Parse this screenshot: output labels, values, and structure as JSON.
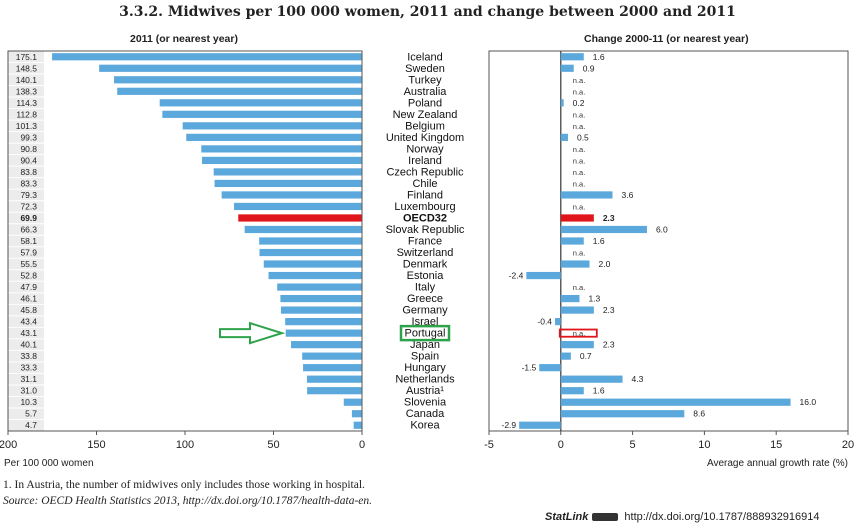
{
  "title": "3.3.2. Midwives per 100 000 women, 2011 and change between 2000 and 2011",
  "footnote": "1. In Austria, the number of midwives only includes those working in hospital.",
  "source": "Source: OECD Health Statistics 2013, http://dx.doi.org/10.1787/health-data-en.",
  "statlink": {
    "label": "StatLink",
    "url": "http://dx.doi.org/10.1787/888932916914"
  },
  "highlight": {
    "country": "Portugal",
    "arrow": "green-arrow"
  },
  "colors": {
    "bar": "#5ba8dc",
    "oecd": "#e0151b",
    "highlight": "#2ea24a",
    "frame": "#555555",
    "band": "#ececec"
  },
  "chart_data": [
    {
      "type": "bar",
      "orientation": "horizontal-reversed",
      "title": "2011 (or nearest year)",
      "xlabel": "Per 100 000 women",
      "xlim": [
        0,
        200
      ],
      "ticks": [
        200,
        150,
        100,
        50,
        0
      ],
      "categories": [
        "Iceland",
        "Sweden",
        "Turkey",
        "Australia",
        "Poland",
        "New Zealand",
        "Belgium",
        "United Kingdom",
        "Norway",
        "Ireland",
        "Czech Republic",
        "Chile",
        "Finland",
        "Luxembourg",
        "OECD32",
        "Slovak Republic",
        "France",
        "Switzerland",
        "Denmark",
        "Estonia",
        "Italy",
        "Greece",
        "Germany",
        "Israel",
        "Portugal",
        "Japan",
        "Spain",
        "Hungary",
        "Netherlands",
        "Austria¹",
        "Slovenia",
        "Canada",
        "Korea"
      ],
      "value_labels": [
        "175.1",
        "148.5",
        "140.1",
        "138.3",
        "114.3",
        "112.8",
        "101.3",
        "99.3",
        "90.8",
        "90.4",
        "83.8",
        "83.3",
        "79.3",
        "72.3",
        "69.9",
        "66.3",
        "58.1",
        "57.9",
        "55.5",
        "52.8",
        "47.9",
        "46.1",
        "45.8",
        "43.4",
        "43.1",
        "40.1",
        "33.8",
        "33.3",
        "31.1",
        "31.0",
        "10.3",
        "5.7",
        "4.7"
      ],
      "values": [
        175.1,
        148.5,
        140.1,
        138.3,
        114.3,
        112.8,
        101.3,
        99.3,
        90.8,
        90.4,
        83.8,
        83.3,
        79.3,
        72.3,
        69.9,
        66.3,
        58.1,
        57.9,
        55.5,
        52.8,
        47.9,
        46.1,
        45.8,
        43.4,
        43.1,
        40.1,
        33.8,
        33.3,
        31.1,
        31.0,
        10.3,
        5.7,
        4.7
      ]
    },
    {
      "type": "bar",
      "orientation": "horizontal",
      "title": "Change 2000-11 (or nearest year)",
      "xlabel": "Average annual growth rate (%)",
      "xlim": [
        -5,
        20
      ],
      "ticks": [
        -5,
        0,
        5,
        10,
        15,
        20
      ],
      "categories": [
        "Iceland",
        "Sweden",
        "Turkey",
        "Australia",
        "Poland",
        "New Zealand",
        "Belgium",
        "United Kingdom",
        "Norway",
        "Ireland",
        "Czech Republic",
        "Chile",
        "Finland",
        "Luxembourg",
        "OECD32",
        "Slovak Republic",
        "France",
        "Switzerland",
        "Denmark",
        "Estonia",
        "Italy",
        "Greece",
        "Germany",
        "Israel",
        "Portugal",
        "Japan",
        "Spain",
        "Hungary",
        "Netherlands",
        "Austria¹",
        "Slovenia",
        "Canada",
        "Korea"
      ],
      "value_labels": [
        "1.6",
        "0.9",
        "n.a.",
        "n.a.",
        "0.2",
        "n.a.",
        "n.a.",
        "0.5",
        "n.a.",
        "n.a.",
        "n.a.",
        "n.a.",
        "3.6",
        "n.a.",
        "2.3",
        "6.0",
        "1.6",
        "n.a.",
        "2.0",
        "-2.4",
        "n.a.",
        "1.3",
        "2.3",
        "-0.4",
        "n.a.",
        "2.3",
        "0.7",
        "-1.5",
        "4.3",
        "1.6",
        "16.0",
        "8.6",
        "-2.9"
      ],
      "values": [
        1.6,
        0.9,
        null,
        null,
        0.2,
        null,
        null,
        0.5,
        null,
        null,
        null,
        null,
        3.6,
        null,
        2.3,
        6.0,
        1.6,
        null,
        2.0,
        -2.4,
        null,
        1.3,
        2.3,
        -0.4,
        null,
        2.3,
        0.7,
        -1.5,
        4.3,
        1.6,
        16.0,
        8.6,
        -2.9
      ]
    }
  ]
}
